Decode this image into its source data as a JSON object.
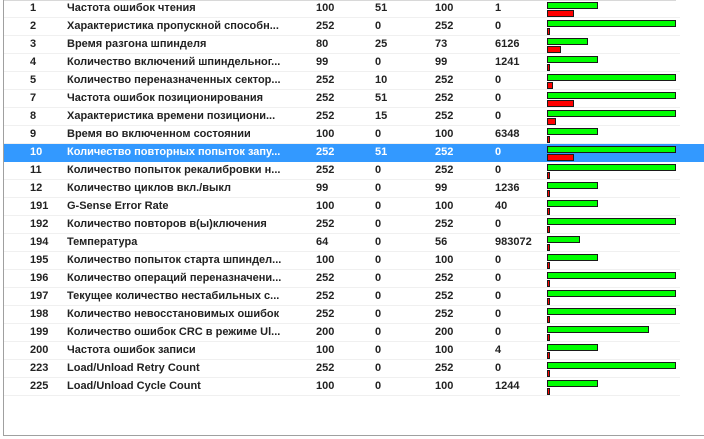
{
  "colors": {
    "current_bar": "#00ff00",
    "threshold_bar": "#ff0000",
    "selection": "#3399ff"
  },
  "selected_id": "10",
  "bar_max": 252,
  "rows": [
    {
      "id": "1",
      "name": "Частота ошибок чтения",
      "value": "100",
      "threshold": "51",
      "worst": "100",
      "raw": "1"
    },
    {
      "id": "2",
      "name": "Характеристика пропускной способн...",
      "value": "252",
      "threshold": "0",
      "worst": "252",
      "raw": "0"
    },
    {
      "id": "3",
      "name": "Время разгона шпинделя",
      "value": "80",
      "threshold": "25",
      "worst": "73",
      "raw": "6126"
    },
    {
      "id": "4",
      "name": "Количество включений шпиндельног...",
      "value": "99",
      "threshold": "0",
      "worst": "99",
      "raw": "1241"
    },
    {
      "id": "5",
      "name": "Количество переназначенных сектор...",
      "value": "252",
      "threshold": "10",
      "worst": "252",
      "raw": "0"
    },
    {
      "id": "7",
      "name": "Частота ошибок позиционирования",
      "value": "252",
      "threshold": "51",
      "worst": "252",
      "raw": "0"
    },
    {
      "id": "8",
      "name": "Характеристика времени позициони...",
      "value": "252",
      "threshold": "15",
      "worst": "252",
      "raw": "0"
    },
    {
      "id": "9",
      "name": "Время во включенном состоянии",
      "value": "100",
      "threshold": "0",
      "worst": "100",
      "raw": "6348"
    },
    {
      "id": "10",
      "name": "Количество повторных попыток запу...",
      "value": "252",
      "threshold": "51",
      "worst": "252",
      "raw": "0"
    },
    {
      "id": "11",
      "name": "Количество попыток рекалибровки н...",
      "value": "252",
      "threshold": "0",
      "worst": "252",
      "raw": "0"
    },
    {
      "id": "12",
      "name": "Количество циклов вкл./выкл",
      "value": "99",
      "threshold": "0",
      "worst": "99",
      "raw": "1236"
    },
    {
      "id": "191",
      "name": "G-Sense Error Rate",
      "value": "100",
      "threshold": "0",
      "worst": "100",
      "raw": "40"
    },
    {
      "id": "192",
      "name": "Количество повторов в(ы)ключения",
      "value": "252",
      "threshold": "0",
      "worst": "252",
      "raw": "0"
    },
    {
      "id": "194",
      "name": "Температура",
      "value": "64",
      "threshold": "0",
      "worst": "56",
      "raw": "983072"
    },
    {
      "id": "195",
      "name": "Количество попыток старта шпиндел...",
      "value": "100",
      "threshold": "0",
      "worst": "100",
      "raw": "0"
    },
    {
      "id": "196",
      "name": "Количество операций переназначени...",
      "value": "252",
      "threshold": "0",
      "worst": "252",
      "raw": "0"
    },
    {
      "id": "197",
      "name": "Текущее количество нестабильных с...",
      "value": "252",
      "threshold": "0",
      "worst": "252",
      "raw": "0"
    },
    {
      "id": "198",
      "name": "Количество невосстановимых ошибок",
      "value": "252",
      "threshold": "0",
      "worst": "252",
      "raw": "0"
    },
    {
      "id": "199",
      "name": "Количество ошибок CRC в режиме Ul...",
      "value": "200",
      "threshold": "0",
      "worst": "200",
      "raw": "0"
    },
    {
      "id": "200",
      "name": "Частота ошибок записи",
      "value": "100",
      "threshold": "0",
      "worst": "100",
      "raw": "4"
    },
    {
      "id": "223",
      "name": "Load/Unload Retry Count",
      "value": "252",
      "threshold": "0",
      "worst": "252",
      "raw": "0"
    },
    {
      "id": "225",
      "name": "Load/Unload Cycle Count",
      "value": "100",
      "threshold": "0",
      "worst": "100",
      "raw": "1244"
    }
  ]
}
